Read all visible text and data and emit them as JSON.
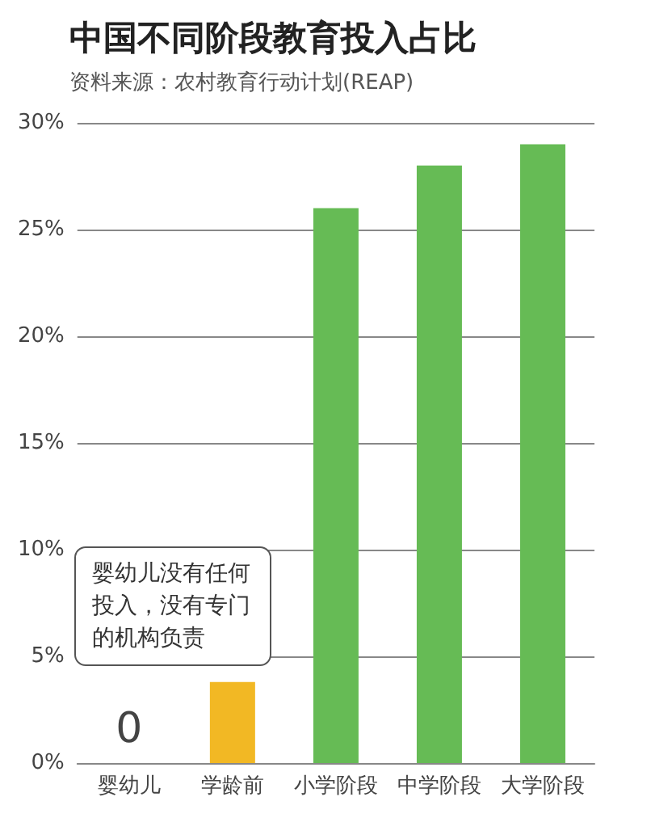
{
  "chart_data": {
    "type": "bar",
    "title": "中国不同阶段教育投入占比",
    "subtitle": "资料来源：农村教育行动计划(REAP)",
    "categories": [
      "婴幼儿",
      "学龄前",
      "小学阶段",
      "中学阶段",
      "大学阶段"
    ],
    "values": [
      0,
      3.8,
      26,
      28,
      29
    ],
    "colors": [
      "#66bb55",
      "#f2b824",
      "#66bb55",
      "#66bb55",
      "#66bb55"
    ],
    "value_labels": [
      "0",
      null,
      null,
      null,
      null
    ],
    "annotations": [
      "婴幼儿没有任何投入，没有专门的机构负责"
    ],
    "ylim": [
      0,
      30
    ],
    "yticks": [
      {
        "value": 0,
        "label": "0%"
      },
      {
        "value": 5,
        "label": "5%"
      },
      {
        "value": 10,
        "label": "10%"
      },
      {
        "value": 15,
        "label": "15%"
      },
      {
        "value": 20,
        "label": "20%"
      },
      {
        "value": 25,
        "label": "25%"
      },
      {
        "value": 30,
        "label": "30%"
      }
    ],
    "grid": "y"
  }
}
